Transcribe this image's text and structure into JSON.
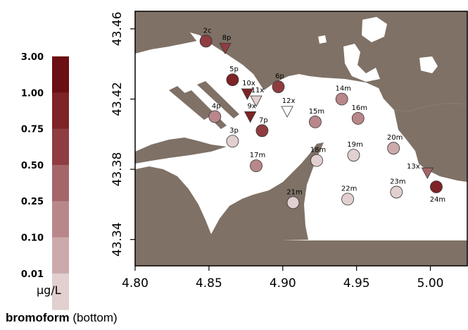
{
  "legend": {
    "units": "μg/L",
    "levels": [
      {
        "label": "3.00",
        "color": "#6b0f12"
      },
      {
        "label": "1.00",
        "color": "#7e2326"
      },
      {
        "label": "0.75",
        "color": "#8f3d40"
      },
      {
        "label": "0.50",
        "color": "#a5666a"
      },
      {
        "label": "0.25",
        "color": "#b9878a"
      },
      {
        "label": "0.10",
        "color": "#ccaaab"
      },
      {
        "label": "0.01",
        "color": "#e2cfcf"
      }
    ]
  },
  "caption": {
    "parameter": "bromoform",
    "qualifier": " (bottom)"
  },
  "map": {
    "land_color": "#7f7166",
    "water_color": "#ffffff",
    "x_ticks": [
      "4.80",
      "4.85",
      "4.90",
      "4.95",
      "5.00"
    ],
    "y_ticks": [
      "43.34",
      "43.38",
      "43.42",
      "43.46"
    ],
    "stations": [
      {
        "id": "2c",
        "lon": 4.848,
        "lat": 43.453,
        "type": "circle",
        "color": "#8f3d40"
      },
      {
        "id": "8p",
        "lon": 4.861,
        "lat": 43.449,
        "type": "triangle",
        "color": "#8f3d40"
      },
      {
        "id": "5p",
        "lon": 4.866,
        "lat": 43.431,
        "type": "circle",
        "color": "#7e2326"
      },
      {
        "id": "10x",
        "lon": 4.876,
        "lat": 43.423,
        "type": "triangle",
        "color": "#7e2326"
      },
      {
        "id": "6p",
        "lon": 4.897,
        "lat": 43.427,
        "type": "circle",
        "color": "#8f3d40"
      },
      {
        "id": "11x",
        "lon": 4.882,
        "lat": 43.419,
        "type": "triangle",
        "color": "#e2cfcf"
      },
      {
        "id": "12x",
        "lon": 4.903,
        "lat": 43.413,
        "type": "triangle",
        "color": "#ffffff"
      },
      {
        "id": "14m",
        "lon": 4.94,
        "lat": 43.42,
        "type": "circle",
        "color": "#b9878a"
      },
      {
        "id": "4p",
        "lon": 4.854,
        "lat": 43.41,
        "type": "circle",
        "color": "#b9878a"
      },
      {
        "id": "9x",
        "lon": 4.878,
        "lat": 43.41,
        "type": "triangle",
        "color": "#7e2326"
      },
      {
        "id": "7p",
        "lon": 4.886,
        "lat": 43.402,
        "type": "circle",
        "color": "#8f3d40"
      },
      {
        "id": "15m",
        "lon": 4.922,
        "lat": 43.407,
        "type": "circle",
        "color": "#b9878a"
      },
      {
        "id": "16m",
        "lon": 4.951,
        "lat": 43.409,
        "type": "circle",
        "color": "#b9878a"
      },
      {
        "id": "3p",
        "lon": 4.866,
        "lat": 43.396,
        "type": "circle",
        "color": "#e2cfcf"
      },
      {
        "id": "20m",
        "lon": 4.975,
        "lat": 43.392,
        "type": "circle",
        "color": "#ccaaab"
      },
      {
        "id": "17m",
        "lon": 4.882,
        "lat": 43.382,
        "type": "circle",
        "color": "#b9878a"
      },
      {
        "id": "18m",
        "lon": 4.923,
        "lat": 43.385,
        "type": "circle",
        "color": "#e2cfcf"
      },
      {
        "id": "19m",
        "lon": 4.948,
        "lat": 43.388,
        "type": "circle",
        "color": "#e2cfcf"
      },
      {
        "id": "13x",
        "lon": 4.998,
        "lat": 43.378,
        "type": "triangle",
        "color": "#a5666a"
      },
      {
        "id": "21m",
        "lon": 4.907,
        "lat": 43.361,
        "type": "circle",
        "color": "#e2cfcf"
      },
      {
        "id": "22m",
        "lon": 4.944,
        "lat": 43.363,
        "type": "circle",
        "color": "#e2cfcf"
      },
      {
        "id": "23m",
        "lon": 4.977,
        "lat": 43.367,
        "type": "circle",
        "color": "#e2cfcf"
      },
      {
        "id": "24m",
        "lon": 5.004,
        "lat": 43.37,
        "type": "circle",
        "color": "#7e2326"
      }
    ]
  }
}
